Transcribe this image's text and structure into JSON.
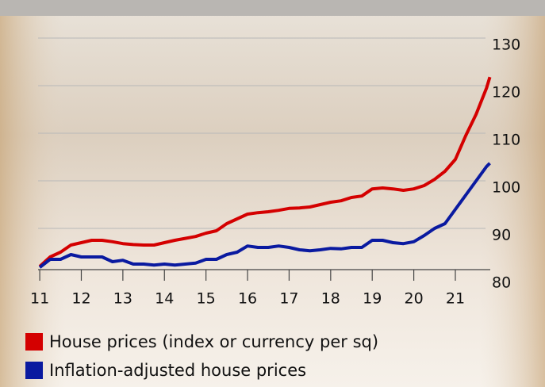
{
  "chart_data": {
    "type": "line",
    "x": [
      11,
      11.25,
      11.5,
      11.75,
      12,
      12.25,
      12.5,
      12.75,
      13,
      13.25,
      13.5,
      13.75,
      14,
      14.25,
      14.5,
      14.75,
      15,
      15.25,
      15.5,
      15.75,
      16,
      16.25,
      16.5,
      16.75,
      17,
      17.25,
      17.5,
      17.75,
      18,
      18.25,
      18.5,
      18.75,
      19,
      19.25,
      19.5,
      19.75,
      20,
      20.25,
      20.5,
      20.75,
      21,
      21.25,
      21.5,
      21.75,
      21.83
    ],
    "series": [
      {
        "name": "House prices (index or currency per sq)",
        "color": "#d40000",
        "values": [
          82,
          84,
          85,
          86.5,
          87,
          87.5,
          87.5,
          87.2,
          86.8,
          86.6,
          86.5,
          86.5,
          87,
          87.5,
          87.9,
          88.3,
          89,
          89.5,
          91,
          92,
          93,
          93.3,
          93.5,
          93.8,
          94.2,
          94.3,
          94.5,
          95,
          95.5,
          95.8,
          96.5,
          96.8,
          98.3,
          98.5,
          98.3,
          98,
          98.3,
          99,
          100.3,
          102,
          104.5,
          109.5,
          114,
          119.5,
          121.8
        ]
      },
      {
        "name": "Inflation-adjusted house prices",
        "color": "#0a1aa0",
        "values": [
          81.8,
          83.5,
          83.5,
          84.5,
          84,
          84,
          84,
          83,
          83.3,
          82.5,
          82.5,
          82.3,
          82.5,
          82.3,
          82.5,
          82.7,
          83.5,
          83.5,
          84.5,
          85,
          86.3,
          86,
          86,
          86.3,
          86,
          85.5,
          85.3,
          85.5,
          85.8,
          85.7,
          86,
          86,
          87.5,
          87.5,
          87,
          86.8,
          87.2,
          88.5,
          90,
          91,
          94,
          97,
          100,
          103,
          103.7
        ]
      }
    ],
    "xlim": [
      10.96,
      21.84
    ],
    "xticks": [
      11,
      12,
      13,
      14,
      15,
      16,
      17,
      18,
      19,
      20,
      21
    ],
    "ylim": [
      81.33,
      130
    ],
    "yticks": [
      80,
      90,
      100,
      110,
      120,
      130
    ],
    "grid": true,
    "legend": "bottom-left"
  }
}
